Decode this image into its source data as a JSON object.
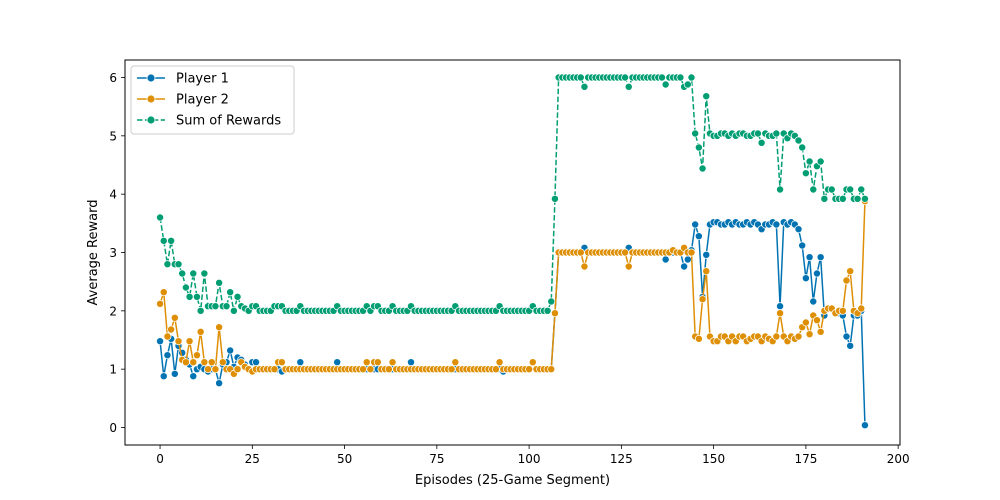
{
  "chart_data": {
    "type": "line",
    "xlabel": "Episodes (25-Game Segment)",
    "ylabel": "Average Reward",
    "xlim": [
      -9.5,
      200.5
    ],
    "ylim": [
      -0.3,
      6.3
    ],
    "xticks": [
      0,
      25,
      50,
      75,
      100,
      125,
      150,
      175,
      200
    ],
    "yticks": [
      0,
      1,
      2,
      3,
      4,
      5,
      6
    ],
    "grid": false,
    "legend": "top-left",
    "series": [
      {
        "name": "Player 1",
        "color": "#0173b2",
        "linestyle": "solid",
        "marker": "circle",
        "values": [
          1.48,
          0.88,
          1.24,
          1.52,
          0.92,
          1.4,
          1.28,
          1.16,
          1.08,
          0.88,
          1.0,
          1.04,
          1.0,
          0.96,
          1.0,
          1.0,
          0.76,
          1.08,
          1.12,
          1.32,
          1.04,
          1.2,
          1.16,
          1.08,
          1.0,
          1.12,
          1.12,
          1.0,
          1.0,
          1.0,
          1.0,
          1.0,
          1.0,
          0.96,
          1.0,
          1.0,
          1.0,
          1.0,
          1.12,
          1.0,
          1.0,
          1.0,
          1.0,
          1.0,
          1.0,
          1.0,
          1.0,
          1.0,
          1.12,
          1.0,
          1.0,
          1.0,
          1.0,
          1.0,
          1.0,
          1.0,
          1.0,
          1.0,
          1.0,
          1.0,
          1.0,
          1.0,
          1.0,
          1.0,
          1.0,
          1.0,
          1.0,
          1.0,
          1.12,
          1.0,
          1.0,
          1.0,
          1.0,
          1.0,
          1.0,
          1.0,
          1.0,
          1.0,
          1.0,
          1.0,
          1.0,
          1.0,
          1.0,
          1.0,
          1.0,
          1.0,
          1.0,
          1.0,
          1.0,
          1.0,
          1.0,
          1.0,
          1.0,
          0.96,
          1.0,
          1.0,
          1.0,
          1.0,
          1.0,
          1.0,
          1.0,
          1.12,
          1.0,
          1.0,
          1.0,
          1.0,
          1.0,
          1.96,
          3.0,
          3.0,
          3.0,
          3.0,
          3.0,
          3.0,
          3.0,
          3.08,
          3.0,
          3.0,
          3.0,
          3.0,
          3.0,
          3.0,
          3.0,
          3.0,
          3.0,
          3.0,
          3.0,
          3.08,
          3.0,
          3.0,
          3.0,
          3.0,
          3.0,
          3.0,
          3.0,
          3.0,
          3.0,
          2.88,
          3.0,
          3.0,
          3.0,
          3.0,
          2.76,
          2.88,
          3.04,
          3.48,
          3.28,
          2.24,
          2.96,
          3.48,
          3.52,
          3.52,
          3.48,
          3.48,
          3.52,
          3.48,
          3.52,
          3.48,
          3.48,
          3.52,
          3.48,
          3.52,
          3.48,
          3.4,
          3.48,
          3.48,
          3.52,
          3.48,
          2.08,
          3.52,
          3.48,
          3.52,
          3.48,
          3.4,
          3.12,
          2.56,
          2.92,
          2.16,
          2.64,
          2.92,
          1.92,
          2.04,
          2.04,
          1.96,
          1.96,
          1.92,
          1.56,
          1.4,
          1.92,
          1.92,
          2.0,
          0.04
        ]
      },
      {
        "name": "Player 2",
        "color": "#de8f05",
        "linestyle": "solid",
        "marker": "circle",
        "values": [
          2.12,
          2.32,
          1.56,
          1.68,
          1.88,
          1.48,
          1.16,
          1.12,
          1.48,
          1.12,
          1.24,
          1.64,
          1.12,
          1.0,
          1.12,
          1.0,
          1.72,
          1.12,
          1.0,
          1.0,
          0.92,
          1.0,
          1.12,
          1.04,
          1.0,
          0.96,
          1.0,
          1.0,
          1.0,
          1.0,
          1.0,
          1.0,
          1.12,
          1.12,
          1.0,
          1.0,
          1.0,
          1.0,
          1.0,
          1.0,
          1.0,
          1.0,
          1.0,
          1.0,
          1.0,
          1.0,
          1.0,
          1.0,
          1.0,
          1.0,
          1.0,
          1.0,
          1.0,
          1.0,
          1.0,
          1.0,
          1.12,
          1.0,
          1.12,
          1.12,
          1.0,
          1.0,
          1.0,
          1.12,
          1.0,
          1.0,
          1.0,
          1.0,
          1.0,
          1.0,
          1.0,
          1.0,
          1.0,
          1.0,
          1.0,
          1.0,
          1.0,
          1.0,
          1.0,
          1.0,
          1.12,
          1.0,
          1.0,
          1.0,
          1.0,
          1.0,
          1.0,
          1.0,
          1.0,
          1.0,
          1.0,
          1.0,
          1.12,
          1.0,
          1.0,
          1.0,
          1.0,
          1.0,
          1.0,
          1.0,
          1.0,
          1.12,
          1.0,
          1.0,
          1.0,
          1.0,
          1.0,
          1.96,
          3.0,
          3.0,
          3.0,
          3.0,
          3.0,
          3.0,
          3.0,
          2.76,
          3.0,
          3.0,
          3.0,
          3.0,
          3.0,
          3.0,
          3.0,
          3.0,
          3.0,
          3.0,
          3.0,
          2.76,
          3.0,
          3.0,
          3.0,
          3.0,
          3.0,
          3.0,
          3.0,
          3.0,
          3.0,
          3.0,
          3.0,
          3.04,
          3.0,
          3.0,
          3.08,
          3.0,
          3.0,
          1.56,
          1.52,
          2.2,
          2.68,
          1.56,
          1.48,
          1.48,
          1.56,
          1.56,
          1.48,
          1.56,
          1.48,
          1.56,
          1.56,
          1.48,
          1.52,
          1.56,
          1.56,
          1.48,
          1.56,
          1.52,
          1.48,
          1.56,
          1.96,
          1.56,
          1.48,
          1.56,
          1.52,
          1.56,
          1.72,
          1.8,
          1.6,
          1.92,
          1.84,
          1.64,
          2.0,
          2.04,
          2.04,
          1.96,
          2.0,
          2.0,
          2.52,
          2.68,
          2.0,
          1.96,
          2.04,
          3.88
        ]
      },
      {
        "name": "Sum of Rewards",
        "color": "#029e73",
        "linestyle": "dashed",
        "marker": "circle",
        "values": [
          3.6,
          3.2,
          2.8,
          3.2,
          2.8,
          2.8,
          2.64,
          2.4,
          2.24,
          2.64,
          2.24,
          2.0,
          2.64,
          2.08,
          2.08,
          2.08,
          2.48,
          2.08,
          2.08,
          2.32,
          2.0,
          2.24,
          2.08,
          2.04,
          2.0,
          2.08,
          2.08,
          2.0,
          2.0,
          2.0,
          2.0,
          2.08,
          2.08,
          2.08,
          2.0,
          2.0,
          2.0,
          2.0,
          2.08,
          2.0,
          2.0,
          2.0,
          2.0,
          2.0,
          2.0,
          2.0,
          2.0,
          2.0,
          2.08,
          2.0,
          2.0,
          2.0,
          2.0,
          2.0,
          2.0,
          2.0,
          2.08,
          2.0,
          2.08,
          2.08,
          2.0,
          2.0,
          2.0,
          2.08,
          2.0,
          2.0,
          2.0,
          2.0,
          2.08,
          2.0,
          2.0,
          2.0,
          2.0,
          2.0,
          2.0,
          2.0,
          2.0,
          2.0,
          2.0,
          2.0,
          2.08,
          2.0,
          2.0,
          2.0,
          2.0,
          2.0,
          2.0,
          2.0,
          2.0,
          2.0,
          2.0,
          2.0,
          2.08,
          2.0,
          2.0,
          2.0,
          2.0,
          2.0,
          2.0,
          2.0,
          2.0,
          2.08,
          2.0,
          2.0,
          2.0,
          2.0,
          2.16,
          3.92,
          6.0,
          6.0,
          6.0,
          6.0,
          6.0,
          6.0,
          6.0,
          5.84,
          6.0,
          6.0,
          6.0,
          6.0,
          6.0,
          6.0,
          6.0,
          6.0,
          6.0,
          6.0,
          6.0,
          5.84,
          6.0,
          6.0,
          6.0,
          6.0,
          6.0,
          6.0,
          6.0,
          6.0,
          6.0,
          5.88,
          6.0,
          6.0,
          6.0,
          6.0,
          5.84,
          5.88,
          6.0,
          5.04,
          4.8,
          4.44,
          5.68,
          5.04,
          5.0,
          5.0,
          5.04,
          5.04,
          5.0,
          5.04,
          5.0,
          5.04,
          5.04,
          5.0,
          5.0,
          5.04,
          5.04,
          4.88,
          5.04,
          5.0,
          5.0,
          5.04,
          4.08,
          5.04,
          4.96,
          5.04,
          5.0,
          4.92,
          4.8,
          4.36,
          4.56,
          4.08,
          4.48,
          4.56,
          3.92,
          4.08,
          4.08,
          3.92,
          3.92,
          3.92,
          4.08,
          4.08,
          3.92,
          3.92,
          4.08,
          3.92
        ]
      }
    ]
  }
}
